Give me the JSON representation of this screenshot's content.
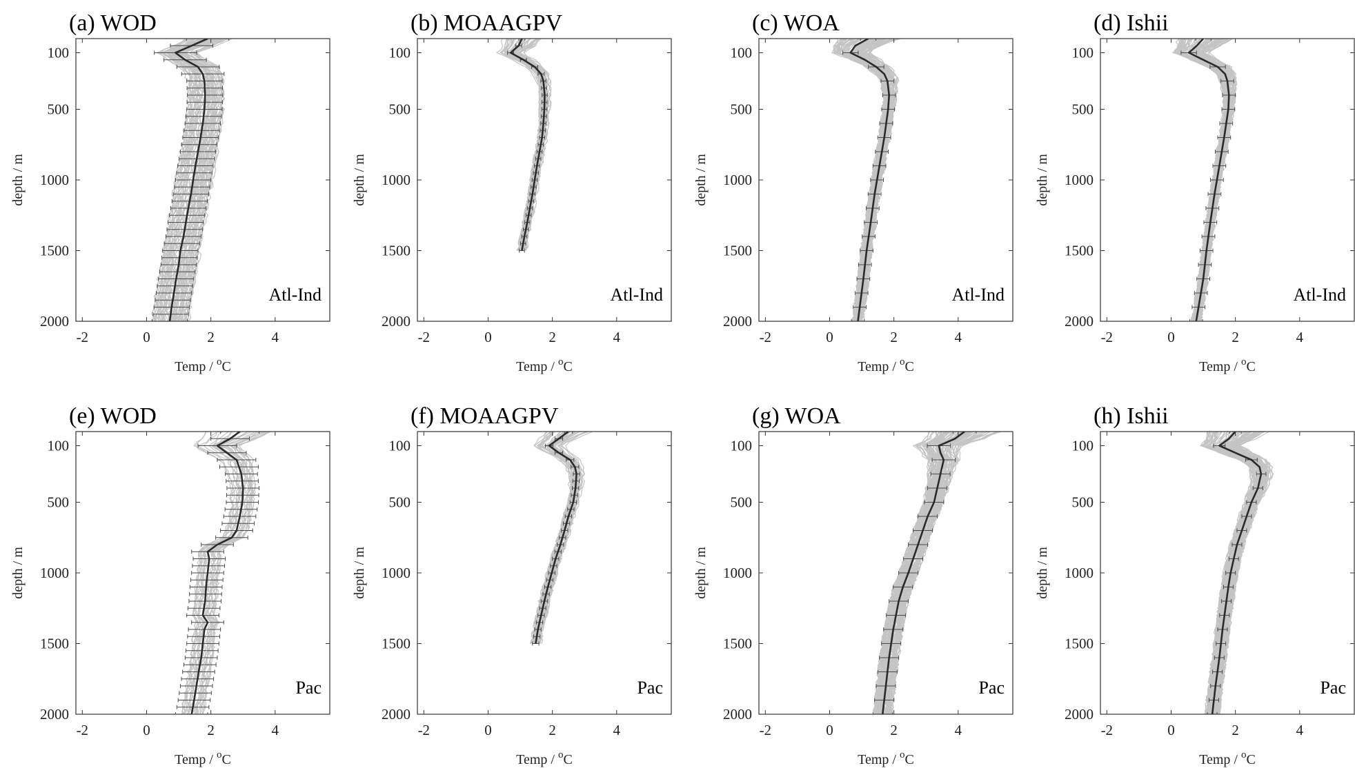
{
  "figure": {
    "colors": {
      "ensemble": "#c4c4c4",
      "mean": "#2a2a2a",
      "errorbar": "#4a4a4a",
      "axis": "#333333"
    }
  },
  "chart_data": [
    {
      "id": "a",
      "type": "line",
      "title": "(a) WOD",
      "region": "Atl-Ind",
      "xlabel": "Temp / oC",
      "xlabel_main": "Temp / ",
      "xlabel_sup": "o",
      "xlabel_unit": "C",
      "ylabel": "depth / m",
      "xlim": [
        -2.2,
        5.7
      ],
      "ylim": [
        2000,
        0
      ],
      "xticks": [
        -2,
        0,
        2,
        4
      ],
      "yticks": [
        100,
        500,
        1000,
        1500,
        2000
      ],
      "y_inverted": true,
      "spread": 0.6,
      "spread_upper": 0.45,
      "nmembers": 60,
      "series": [
        {
          "depth": [
            0,
            50,
            100,
            150,
            200,
            250,
            300,
            400,
            500,
            600,
            700,
            800,
            900,
            1000,
            1100,
            1200,
            1300,
            1400,
            1500,
            1600,
            1700,
            1800,
            1900,
            2000
          ],
          "temp": [
            1.9,
            1.4,
            0.9,
            1.2,
            1.6,
            1.75,
            1.8,
            1.82,
            1.8,
            1.75,
            1.68,
            1.6,
            1.52,
            1.45,
            1.38,
            1.3,
            1.22,
            1.15,
            1.05,
            1.0,
            0.92,
            0.85,
            0.78,
            0.72
          ],
          "errorbar": true,
          "err_every": 1,
          "err": 0.55
        }
      ]
    },
    {
      "id": "b",
      "type": "line",
      "title": "(b) MOAAGPV",
      "region": "Atl-Ind",
      "xlabel": "Temp / oC",
      "xlabel_main": "Temp / ",
      "xlabel_sup": "o",
      "xlabel_unit": "C",
      "ylabel": "depth / m",
      "xlim": [
        -2.2,
        5.7
      ],
      "ylim": [
        2000,
        0
      ],
      "xticks": [
        -2,
        0,
        2,
        4
      ],
      "yticks": [
        100,
        500,
        1000,
        1500,
        2000
      ],
      "y_inverted": true,
      "spread": 0.12,
      "spread_upper": 0.6,
      "nmembers": 40,
      "series": [
        {
          "depth": [
            0,
            50,
            100,
            150,
            200,
            250,
            300,
            400,
            500,
            600,
            700,
            800,
            900,
            1000,
            1100,
            1200,
            1300,
            1400,
            1500
          ],
          "temp": [
            1.05,
            0.95,
            0.7,
            1.1,
            1.45,
            1.65,
            1.72,
            1.76,
            1.75,
            1.72,
            1.68,
            1.6,
            1.52,
            1.45,
            1.38,
            1.3,
            1.22,
            1.13,
            1.05
          ],
          "errorbar": true,
          "err_every": 1,
          "err": 0.08
        }
      ]
    },
    {
      "id": "c",
      "type": "line",
      "title": "(c) WOA",
      "region": "Atl-Ind",
      "xlabel": "Temp / oC",
      "xlabel_main": "Temp / ",
      "xlabel_sup": "o",
      "xlabel_unit": "C",
      "ylabel": "depth / m",
      "xlim": [
        -2.2,
        5.7
      ],
      "ylim": [
        2000,
        0
      ],
      "xticks": [
        -2,
        0,
        2,
        4
      ],
      "yticks": [
        100,
        500,
        1000,
        1500,
        2000
      ],
      "y_inverted": true,
      "spread": 0.15,
      "spread_upper": 0.9,
      "nmembers": 80,
      "series": [
        {
          "depth": [
            0,
            50,
            100,
            150,
            200,
            250,
            300,
            400,
            500,
            700,
            900,
            1100,
            1300,
            1500,
            1700,
            2000
          ],
          "temp": [
            1.2,
            0.8,
            0.65,
            1.1,
            1.45,
            1.7,
            1.8,
            1.85,
            1.82,
            1.7,
            1.55,
            1.4,
            1.28,
            1.15,
            1.05,
            0.88
          ],
          "errorbar": true,
          "err_every": 1,
          "err": 0.2
        }
      ]
    },
    {
      "id": "d",
      "type": "line",
      "title": "(d) Ishii",
      "region": "Atl-Ind",
      "xlabel": "Temp / oC",
      "xlabel_main": "Temp / ",
      "xlabel_sup": "o",
      "xlabel_unit": "C",
      "ylabel": "depth / m",
      "xlim": [
        -2.2,
        5.7
      ],
      "ylim": [
        2000,
        0
      ],
      "xticks": [
        -2,
        0,
        2,
        4
      ],
      "yticks": [
        100,
        500,
        1000,
        1500,
        2000
      ],
      "y_inverted": true,
      "spread": 0.12,
      "spread_upper": 0.9,
      "nmembers": 80,
      "series": [
        {
          "depth": [
            0,
            50,
            100,
            150,
            200,
            250,
            300,
            400,
            500,
            700,
            900,
            1100,
            1300,
            1500,
            1700,
            2000
          ],
          "temp": [
            1.0,
            0.8,
            0.55,
            1.0,
            1.45,
            1.68,
            1.75,
            1.8,
            1.78,
            1.65,
            1.5,
            1.35,
            1.22,
            1.1,
            1.0,
            0.78
          ],
          "errorbar": true,
          "err_every": 1,
          "err": 0.2
        }
      ]
    },
    {
      "id": "e",
      "type": "line",
      "title": "(e) WOD",
      "region": "Pac",
      "xlabel": "Temp / oC",
      "xlabel_main": "Temp / ",
      "xlabel_sup": "o",
      "xlabel_unit": "C",
      "ylabel": "depth / m",
      "xlim": [
        -2.2,
        5.7
      ],
      "ylim": [
        2000,
        0
      ],
      "xticks": [
        -2,
        0,
        2,
        4
      ],
      "yticks": [
        100,
        500,
        1000,
        1500,
        2000
      ],
      "y_inverted": true,
      "spread": 0.35,
      "spread_upper": 0.9,
      "nmembers": 25,
      "series": [
        {
          "depth": [
            0,
            50,
            100,
            150,
            200,
            300,
            400,
            500,
            600,
            700,
            750,
            800,
            850,
            900,
            1000,
            1100,
            1200,
            1300,
            1350,
            1400,
            1500,
            1600,
            1700,
            1800,
            1900,
            2000
          ],
          "temp": [
            2.9,
            2.6,
            2.2,
            2.5,
            2.8,
            2.95,
            3.0,
            2.98,
            2.9,
            2.8,
            2.65,
            2.2,
            1.9,
            1.95,
            1.9,
            1.85,
            1.82,
            1.75,
            1.9,
            1.8,
            1.75,
            1.7,
            1.62,
            1.55,
            1.48,
            1.4
          ],
          "errorbar": true,
          "err_every": 1,
          "err": 0.5
        }
      ]
    },
    {
      "id": "f",
      "type": "line",
      "title": "(f) MOAAGPV",
      "region": "Pac",
      "xlabel": "Temp / oC",
      "xlabel_main": "Temp / ",
      "xlabel_sup": "o",
      "xlabel_unit": "C",
      "ylabel": "depth / m",
      "xlim": [
        -2.2,
        5.7
      ],
      "ylim": [
        2000,
        0
      ],
      "xticks": [
        -2,
        0,
        2,
        4
      ],
      "yticks": [
        100,
        500,
        1000,
        1500,
        2000
      ],
      "y_inverted": true,
      "spread": 0.15,
      "spread_upper": 0.7,
      "nmembers": 40,
      "series": [
        {
          "depth": [
            0,
            50,
            100,
            150,
            200,
            250,
            300,
            400,
            500,
            600,
            700,
            800,
            900,
            1000,
            1100,
            1200,
            1300,
            1400,
            1500
          ],
          "temp": [
            2.5,
            2.2,
            1.9,
            2.2,
            2.55,
            2.7,
            2.75,
            2.72,
            2.65,
            2.5,
            2.38,
            2.25,
            2.1,
            1.98,
            1.86,
            1.75,
            1.65,
            1.55,
            1.48
          ],
          "errorbar": true,
          "err_every": 1,
          "err": 0.1
        }
      ]
    },
    {
      "id": "g",
      "type": "line",
      "title": "(g) WOA",
      "region": "Pac",
      "xlabel": "Temp / oC",
      "xlabel_main": "Temp / ",
      "xlabel_sup": "o",
      "xlabel_unit": "C",
      "ylabel": "depth / m",
      "xlim": [
        -2.2,
        5.7
      ],
      "ylim": [
        2000,
        0
      ],
      "xticks": [
        -2,
        0,
        2,
        4
      ],
      "yticks": [
        100,
        500,
        1000,
        1500,
        2000
      ],
      "y_inverted": true,
      "spread": 0.28,
      "spread_upper": 1.0,
      "nmembers": 80,
      "series": [
        {
          "depth": [
            0,
            50,
            100,
            150,
            200,
            250,
            300,
            400,
            500,
            600,
            700,
            800,
            900,
            1000,
            1100,
            1200,
            1400,
            1600,
            1800,
            2000
          ],
          "temp": [
            4.2,
            3.9,
            3.4,
            3.45,
            3.55,
            3.5,
            3.45,
            3.35,
            3.25,
            3.05,
            2.9,
            2.75,
            2.6,
            2.45,
            2.28,
            2.15,
            1.98,
            1.85,
            1.75,
            1.65
          ],
          "errorbar": true,
          "err_every": 1,
          "err": 0.3
        }
      ]
    },
    {
      "id": "h",
      "type": "line",
      "title": "(h) Ishii",
      "region": "Pac",
      "xlabel": "Temp / oC",
      "xlabel_main": "Temp / ",
      "xlabel_sup": "o",
      "xlabel_unit": "C",
      "ylabel": "depth / m",
      "xlim": [
        -2.2,
        5.7
      ],
      "ylim": [
        2000,
        0
      ],
      "xticks": [
        -2,
        0,
        2,
        4
      ],
      "yticks": [
        100,
        500,
        1000,
        1500,
        2000
      ],
      "y_inverted": true,
      "spread": 0.2,
      "spread_upper": 0.9,
      "nmembers": 80,
      "series": [
        {
          "depth": [
            0,
            50,
            100,
            150,
            200,
            250,
            300,
            400,
            500,
            600,
            700,
            800,
            900,
            1000,
            1100,
            1200,
            1400,
            1600,
            1800,
            2000
          ],
          "temp": [
            2.0,
            1.8,
            1.5,
            2.0,
            2.5,
            2.75,
            2.8,
            2.7,
            2.5,
            2.35,
            2.2,
            2.05,
            1.95,
            1.85,
            1.78,
            1.72,
            1.6,
            1.5,
            1.38,
            1.28
          ],
          "errorbar": true,
          "err_every": 1,
          "err": 0.15
        }
      ]
    }
  ]
}
